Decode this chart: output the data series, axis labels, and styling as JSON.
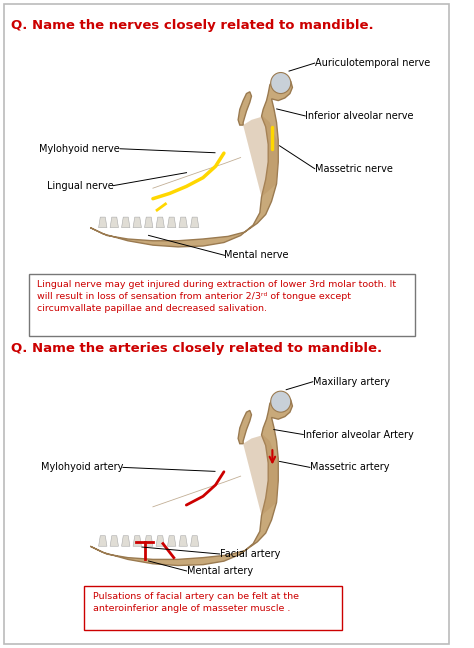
{
  "title1": "Q. Name the nerves closely related to mandible.",
  "title2": "Q. Name the arteries closely related to mandible.",
  "title_color": "#cc0000",
  "title_fontsize": 9.5,
  "bg_color": "#ffffff",
  "label_fontsize": 7.0,
  "note_fontsize": 6.8,
  "label_color": "#000000",
  "note_color": "#cc0000",
  "box_edge_color": "#cc0000",
  "box1_edge_color": "#777777",
  "bone_color": "#c8a97a",
  "bone_dark": "#9a7a50",
  "bone_light": "#dfc090",
  "note1_text": "Lingual nerve may get injured during extraction of lower 3rd molar tooth. It\nwill result in loss of sensation from anterior 2/3rd of tongue except\ncircumvallate papillae and decreased salivation.",
  "note2_text": "Pulsations of facial artery can be felt at the\nanteroinferior angle of masseter muscle ."
}
